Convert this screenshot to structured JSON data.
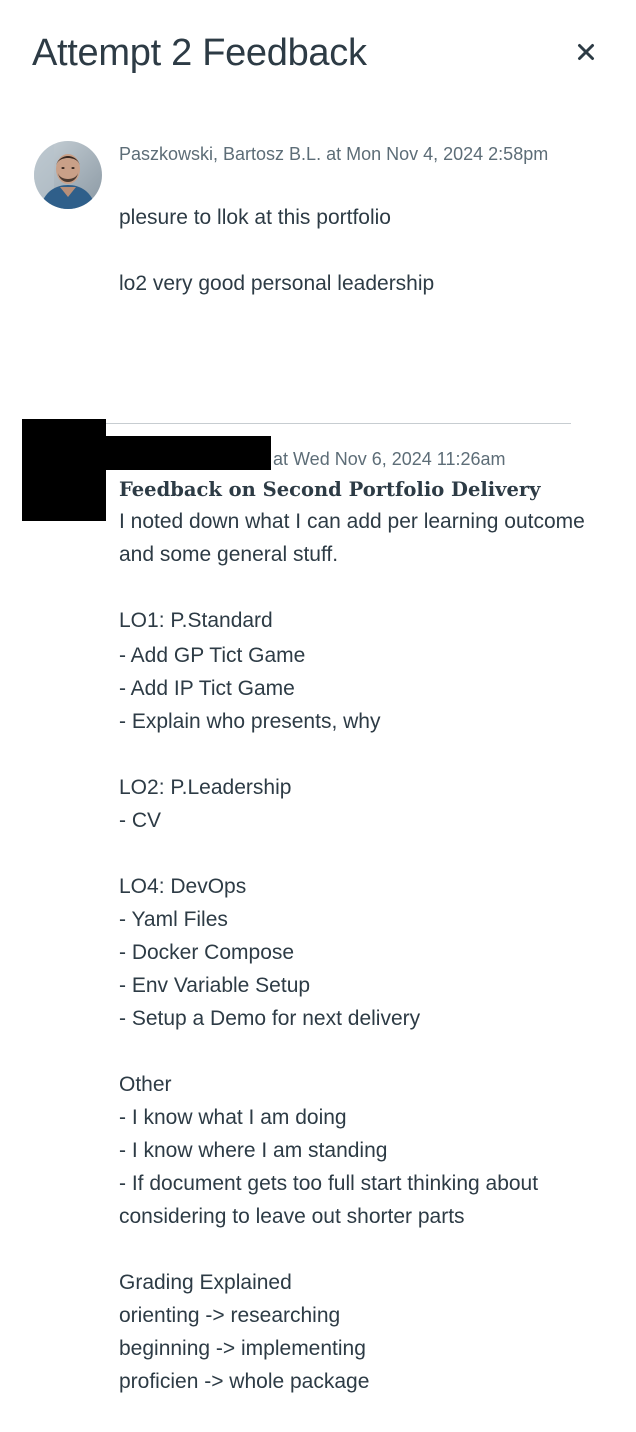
{
  "dialog": {
    "title": "Attempt 2 Feedback",
    "close_icon": "close-icon"
  },
  "comments": [
    {
      "author": "Paszkowski, Bartosz B.L.",
      "meta": "Paszkowski, Bartosz B.L. at Mon Nov 4, 2024 2:58pm",
      "avatar_icon": "avatar-photo",
      "lines": [
        "plesure to llok at this portfolio",
        "lo2 very good personal leadership"
      ]
    },
    {
      "author_redacted": true,
      "meta": "at Wed Nov 6, 2024 11:26am",
      "heading": "Feedback on Second Portfolio Delivery",
      "lines": [
        "I noted down what I can add per learning outcome",
        "and some general stuff.",
        "LO1: P.Standard",
        "- Add GP Tict Game",
        "- Add IP Tict Game",
        "- Explain who presents, why",
        "LO2: P.Leadership",
        "- CV",
        "LO4: DevOps",
        "- Yaml Files",
        "- Docker Compose",
        "- Env Variable Setup",
        "- Setup a Demo for next delivery",
        "Other",
        "- I know what I am doing",
        "- I know where I am standing",
        "- If document gets too full start thinking about",
        "considering to leave out shorter parts",
        "Grading Explained",
        "orienting -> researching",
        "beginning -> implementing",
        "proficien -> whole package"
      ]
    }
  ],
  "colors": {
    "text": "#2d3b45",
    "meta": "#5d6d77",
    "divider": "#c7cdd1",
    "redaction": "#000000"
  }
}
